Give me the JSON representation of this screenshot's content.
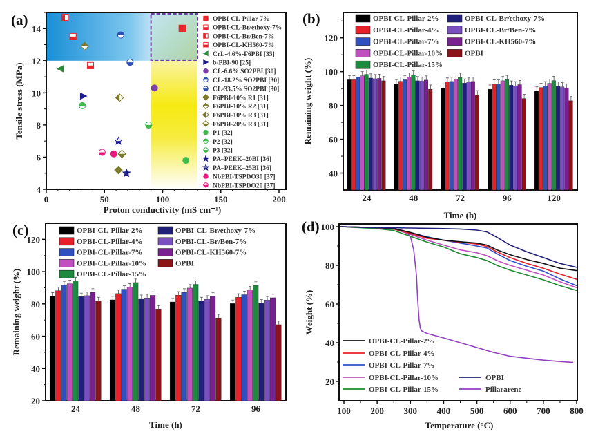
{
  "chart_data": [
    {
      "panel": "(a)",
      "type": "scatter",
      "xlabel": "Proton conductivity (mS cm⁻¹)",
      "ylabel": "Tensile stress (MPa)",
      "xlim": [
        0,
        200
      ],
      "ylim": [
        4,
        15
      ],
      "xticks": [
        "0",
        "50",
        "100",
        "150",
        "200"
      ],
      "yticks": [
        "4",
        "6",
        "8",
        "10",
        "12",
        "14"
      ],
      "legend_position": "right",
      "highlight_regions": [
        {
          "name": "blue-gradient-region",
          "x": [
            0,
            130
          ],
          "y": [
            12,
            15
          ],
          "color": "#1a9ad8"
        },
        {
          "name": "yellow-gradient-region",
          "x": [
            90,
            130
          ],
          "y": [
            4,
            12
          ],
          "color": "#f4e800"
        },
        {
          "name": "dashed-box",
          "x": [
            90,
            130
          ],
          "y": [
            12,
            15
          ],
          "color": "#6a3fa0"
        }
      ],
      "series": [
        {
          "name": "OPBI-CL-Pillar-7%",
          "marker": "square",
          "fill": "full",
          "color": "#e8262b",
          "points": [
            [
              117,
              14.0
            ]
          ]
        },
        {
          "name": "OPBI-CL-Br/ethoxy-7%",
          "marker": "square",
          "fill": "half",
          "color": "#e8262b",
          "points": [
            [
              23,
              13.5
            ]
          ]
        },
        {
          "name": "OPBI-CL-Br/Ben-7%",
          "marker": "square",
          "fill": "half-v",
          "color": "#e8262b",
          "points": [
            [
              16,
              14.7
            ]
          ]
        },
        {
          "name": "OPBI-CL-KH560-7%",
          "marker": "square",
          "fill": "half",
          "color": "#e8262b",
          "points": [
            [
              38,
              11.7
            ]
          ]
        },
        {
          "name": "CrL-4.6%-F6PBI   [35]",
          "marker": "triangle-left",
          "fill": "full",
          "color": "#2e8b3a",
          "points": [
            [
              12,
              11.5
            ]
          ]
        },
        {
          "name": "b-PBI-90   [25]",
          "marker": "triangle-right",
          "fill": "full",
          "color": "#1e1e8a",
          "points": [
            [
              32,
              9.8
            ]
          ]
        },
        {
          "name": "CL-6.6% SO2PBI   [30]",
          "marker": "circle",
          "fill": "full",
          "color": "#7a3db0",
          "points": [
            [
              93,
              10.3
            ]
          ]
        },
        {
          "name": "CL-18.2% SO2PBI   [30]",
          "marker": "circle",
          "fill": "half-top",
          "color": "#2d4fb0",
          "points": [
            [
              64,
              13.6
            ]
          ]
        },
        {
          "name": "CL-33.5% SO2PBI   [30]",
          "marker": "circle",
          "fill": "half",
          "color": "#2d4fb0",
          "points": [
            [
              72,
              11.9
            ]
          ]
        },
        {
          "name": "F6PBI-10% R1   [31]",
          "marker": "diamond",
          "fill": "full",
          "color": "#7a7a2a",
          "points": [
            [
              62,
              5.2
            ]
          ]
        },
        {
          "name": "F6PBI-10% R2   [31]",
          "marker": "diamond",
          "fill": "half-top",
          "color": "#7a7a2a",
          "points": [
            [
              33,
              12.9
            ]
          ]
        },
        {
          "name": "F6PBI-10% R3   [31]",
          "marker": "diamond",
          "fill": "half-v",
          "color": "#7a7a2a",
          "points": [
            [
              63,
              9.7
            ]
          ]
        },
        {
          "name": "F6PBI-20% R3   [31]",
          "marker": "diamond",
          "fill": "half",
          "color": "#7a7a2a",
          "points": [
            [
              65,
              6.2
            ]
          ]
        },
        {
          "name": "P1   [32]",
          "marker": "circle",
          "fill": "full",
          "color": "#3cba4a",
          "points": [
            [
              120,
              5.8
            ]
          ]
        },
        {
          "name": "P2   [32]",
          "marker": "circle",
          "fill": "half-top",
          "color": "#3cba4a",
          "points": [
            [
              31,
              9.2
            ]
          ]
        },
        {
          "name": "P3   [32]",
          "marker": "circle",
          "fill": "half",
          "color": "#3cba4a",
          "points": [
            [
              88,
              8.0
            ]
          ]
        },
        {
          "name": "PA–PEEK–20BI   [36]",
          "marker": "star",
          "fill": "full",
          "color": "#1e1e8a",
          "points": [
            [
              69,
              5.0
            ]
          ]
        },
        {
          "name": "PA–PEEK–25BI   [36]",
          "marker": "star",
          "fill": "half",
          "color": "#1e1e8a",
          "points": [
            [
              62,
              7.0
            ]
          ]
        },
        {
          "name": "NbPBI-TSPDO30   [37]",
          "marker": "circle",
          "fill": "full",
          "color": "#e8197e",
          "points": [
            [
              58,
              6.2
            ]
          ]
        },
        {
          "name": "NbPBI-TSPDO20   [37]",
          "marker": "circle",
          "fill": "half",
          "color": "#e8197e",
          "points": [
            [
              48,
              6.3
            ]
          ]
        }
      ]
    },
    {
      "panel": "(b)",
      "type": "bar",
      "xlabel": "Time (h)",
      "ylabel": "Remaining weight (%)",
      "ylim": [
        30,
        135
      ],
      "yticks": [
        "40",
        "60",
        "80",
        "100",
        "120"
      ],
      "categories": [
        "24",
        "48",
        "72",
        "96",
        "120"
      ],
      "legend_position": "top",
      "error_bar": 2.5,
      "series": [
        {
          "name": "OPBI-CL-Pillar-2%",
          "color": "#000000",
          "values": [
            95.2,
            92.8,
            90.3,
            89.6,
            88.5
          ]
        },
        {
          "name": "OPBI-CL-Pillar-4%",
          "color": "#e8202a",
          "values": [
            95.2,
            94.3,
            93.8,
            92.7,
            90.6
          ]
        },
        {
          "name": "OPBI-CL-Pillar-7%",
          "color": "#3050c0",
          "values": [
            96.8,
            95.2,
            94.2,
            92.6,
            91.6
          ]
        },
        {
          "name": "OPBI-CL-Pillar-10%",
          "color": "#c050c0",
          "values": [
            97.5,
            96.7,
            95.5,
            94.6,
            93.1
          ]
        },
        {
          "name": "OPBI-CL-Pillar-15%",
          "color": "#1e8a40",
          "values": [
            98.4,
            97.9,
            96.6,
            95.3,
            94.7
          ]
        },
        {
          "name": "OPBI-CL-Br/ethoxy-7%",
          "color": "#20207a",
          "values": [
            96.2,
            94.6,
            93.2,
            92.0,
            91.4
          ]
        },
        {
          "name": "OPBI-CL-Br/Ben-7%",
          "color": "#7a50c0",
          "values": [
            95.8,
            94.4,
            93.8,
            91.6,
            91.0
          ]
        },
        {
          "name": "OPBI-CL-KH560-7%",
          "color": "#7a2090",
          "values": [
            96.0,
            95.0,
            94.2,
            92.3,
            90.3
          ]
        },
        {
          "name": "OPBI",
          "color": "#8a1218",
          "values": [
            94.6,
            89.6,
            86.3,
            84.1,
            82.8
          ]
        }
      ]
    },
    {
      "panel": "(c)",
      "type": "bar",
      "xlabel": "Time (h)",
      "ylabel": "Remaining weight (%)",
      "ylim": [
        20,
        130
      ],
      "yticks": [
        "20",
        "40",
        "60",
        "80",
        "100",
        "120"
      ],
      "categories": [
        "24",
        "48",
        "72",
        "96"
      ],
      "legend_position": "top",
      "error_bar": 2.2,
      "series": [
        {
          "name": "OPBI-CL-Pillar-2%",
          "color": "#000000",
          "values": [
            84.8,
            82.5,
            81.2,
            80.2
          ]
        },
        {
          "name": "OPBI-CL-Pillar-4%",
          "color": "#e8202a",
          "values": [
            88.2,
            86.4,
            85.4,
            84.1
          ]
        },
        {
          "name": "OPBI-CL-Pillar-7%",
          "color": "#3050c0",
          "values": [
            91.8,
            89.1,
            87.2,
            85.7
          ]
        },
        {
          "name": "OPBI-CL-Pillar-10%",
          "color": "#c050c0",
          "values": [
            92.5,
            90.4,
            89.8,
            88.6
          ]
        },
        {
          "name": "OPBI-CL-Pillar-15%",
          "color": "#1e8a40",
          "values": [
            94.3,
            93.2,
            92.1,
            91.5
          ]
        },
        {
          "name": "OPBI-CL-Br/ethoxy-7%",
          "color": "#20207a",
          "values": [
            84.5,
            83.3,
            81.9,
            80.5
          ]
        },
        {
          "name": "OPBI-CL-Br/Ben-7%",
          "color": "#7a50c0",
          "values": [
            85.1,
            83.7,
            82.9,
            82.4
          ]
        },
        {
          "name": "OPBI-CL-KH560-7%",
          "color": "#7a2090",
          "values": [
            87.2,
            85.3,
            84.7,
            83.8
          ]
        },
        {
          "name": "OPBI",
          "color": "#8a1218",
          "values": [
            81.9,
            76.8,
            71.3,
            67.1
          ]
        }
      ]
    },
    {
      "panel": "(d)",
      "type": "line",
      "xlabel": "Temperature (°C)",
      "ylabel": "Weight (%)",
      "xlim": [
        85,
        800
      ],
      "ylim": [
        10,
        102
      ],
      "xticks": [
        "100",
        "200",
        "300",
        "400",
        "500",
        "600",
        "700",
        "800"
      ],
      "yticks": [
        "20",
        "40",
        "60",
        "80",
        "100"
      ],
      "legend_position": "bottom-left",
      "series": [
        {
          "name": "OPBI-CL-Pillar-2%",
          "color": "#111111",
          "x": [
            90,
            200,
            250,
            300,
            350,
            400,
            450,
            500,
            530,
            560,
            600,
            650,
            700,
            750,
            800
          ],
          "y": [
            100,
            99.5,
            99,
            97,
            94.5,
            93,
            92.2,
            91.5,
            90.5,
            88,
            85.5,
            83,
            81,
            78.5,
            77.3
          ]
        },
        {
          "name": "OPBI-CL-Pillar-4%",
          "color": "#e8202a",
          "x": [
            90,
            200,
            250,
            300,
            350,
            400,
            450,
            500,
            530,
            560,
            600,
            650,
            700,
            750,
            800
          ],
          "y": [
            100,
            99.5,
            98.8,
            96.5,
            94,
            93,
            92,
            91,
            89.8,
            87,
            84,
            81,
            78.5,
            75.5,
            72.8
          ]
        },
        {
          "name": "OPBI-CL-Pillar-7%",
          "color": "#3050d0",
          "x": [
            90,
            200,
            250,
            300,
            350,
            400,
            450,
            500,
            530,
            560,
            600,
            650,
            700,
            750,
            800
          ],
          "y": [
            100,
            99.5,
            98.8,
            97,
            94.8,
            93,
            91.5,
            90,
            89,
            86,
            82.5,
            79.5,
            77,
            73,
            69.5
          ]
        },
        {
          "name": "OPBI-CL-Pillar-10%",
          "color": "#c050c0",
          "x": [
            90,
            200,
            250,
            300,
            350,
            400,
            450,
            500,
            530,
            560,
            600,
            650,
            700,
            750,
            800
          ],
          "y": [
            100,
            99.5,
            98.8,
            96,
            93,
            90.5,
            88,
            86.5,
            85,
            82.5,
            80,
            77.5,
            75,
            71.5,
            68.5
          ]
        },
        {
          "name": "OPBI-CL-Pillar-15%",
          "color": "#1e8a30",
          "x": [
            90,
            200,
            250,
            300,
            350,
            400,
            450,
            500,
            530,
            560,
            600,
            650,
            700,
            750,
            800
          ],
          "y": [
            100,
            99,
            98,
            95,
            92,
            89.5,
            86,
            84,
            82.5,
            80,
            77.5,
            75,
            72.5,
            69.5,
            67
          ]
        },
        {
          "name": "OPBI",
          "color": "#20207a",
          "x": [
            90,
            200,
            300,
            400,
            450,
            500,
            530,
            550,
            575,
            600,
            650,
            700,
            750,
            800
          ],
          "y": [
            100,
            99.5,
            99.3,
            99,
            98.8,
            98.2,
            97.3,
            95.5,
            93,
            90.5,
            87,
            84,
            81,
            79
          ]
        },
        {
          "name": "Pillararene",
          "color": "#9040c0",
          "x": [
            90,
            200,
            250,
            280,
            300,
            310,
            318,
            322,
            326,
            330,
            335,
            350,
            400,
            450,
            500,
            550,
            600,
            650,
            700,
            750,
            790
          ],
          "y": [
            100,
            99.5,
            99,
            98,
            95,
            88,
            75,
            62,
            52,
            47.5,
            46,
            44.8,
            42.5,
            40,
            37.5,
            35,
            33,
            32,
            31,
            30.3,
            29.8
          ]
        }
      ]
    }
  ],
  "labels": {
    "a": "(a)",
    "b": "(b)",
    "c": "(c)",
    "d": "(d)"
  }
}
